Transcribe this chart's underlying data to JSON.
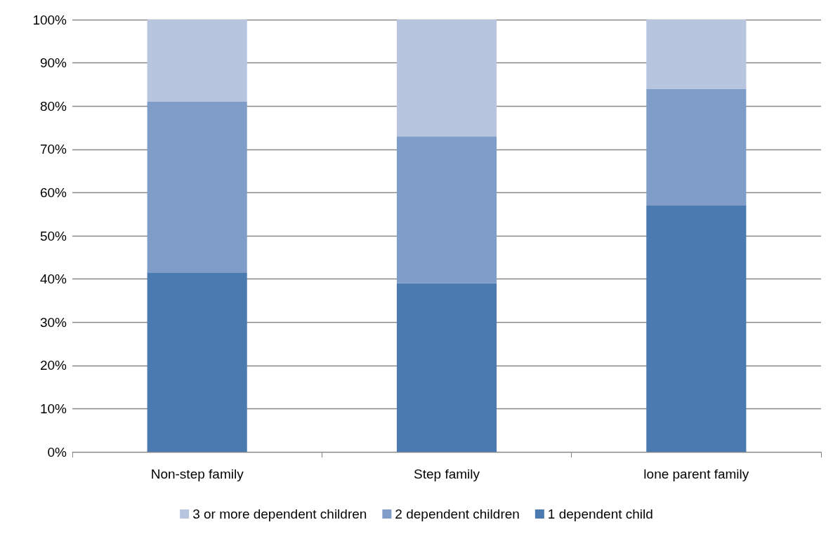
{
  "chart_data": {
    "type": "bar",
    "stacked": true,
    "categories": [
      "Non-step family",
      "Step family",
      "lone parent family"
    ],
    "series": [
      {
        "name": "1 dependent child",
        "color": "#4a7ab0",
        "values": [
          41.5,
          39,
          57
        ]
      },
      {
        "name": "2 dependent children",
        "color": "#809dc9",
        "values": [
          39.5,
          34,
          27
        ]
      },
      {
        "name": "3 or more dependent children",
        "color": "#b7c5df",
        "values": [
          19,
          27,
          16
        ]
      }
    ],
    "ylim": [
      0,
      100
    ],
    "yticks": [
      {
        "value": 0,
        "label": "0%"
      },
      {
        "value": 10,
        "label": "10%"
      },
      {
        "value": 20,
        "label": "20%"
      },
      {
        "value": 30,
        "label": "30%"
      },
      {
        "value": 40,
        "label": "40%"
      },
      {
        "value": 50,
        "label": "50%"
      },
      {
        "value": 60,
        "label": "60%"
      },
      {
        "value": 70,
        "label": "70%"
      },
      {
        "value": 80,
        "label": "80%"
      },
      {
        "value": 90,
        "label": "90%"
      },
      {
        "value": 100,
        "label": "100%"
      }
    ],
    "grid": "y",
    "legend": "bottom"
  }
}
